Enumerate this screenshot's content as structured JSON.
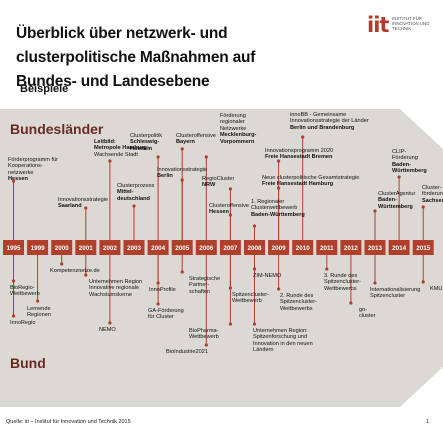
{
  "header": {
    "title_line1": "Überblick über netzwerk- und clusterpolitische Maßnahmen auf",
    "title_line2": "Bundes- und Landesebene",
    "subtitle": "Beispiele"
  },
  "logo": {
    "mark": "iit",
    "text": "INSTITUT FÜR\nINNOVATION UND\nTECHNIK"
  },
  "regions": {
    "top": "Bundesländer",
    "bottom": "Bund"
  },
  "years": [
    "1995",
    "1999",
    "2000",
    "2001",
    "2002",
    "2003",
    "2004",
    "2005",
    "2006",
    "2007",
    "2008",
    "2009",
    "2010",
    "2011",
    "2012",
    "2013",
    "2014",
    "2015"
  ],
  "laender_events": [
    {
      "lines": [
        "Förderprogramm für",
        "Kooperations-",
        "netzwerke"
      ],
      "bold": [
        "Hessen"
      ]
    },
    {
      "lines": [
        "Innovationsstrategie"
      ],
      "bold": [
        "Saarland"
      ]
    },
    {
      "lines": [],
      "bold": [
        "Leitbild:",
        "Metropole Hamburg -"
      ],
      "after": [
        "Wachsende Stadt"
      ]
    },
    {
      "lines": [
        "Clusterprozess"
      ],
      "bold": [
        "Mittel-",
        "deutschland"
      ]
    },
    {
      "lines": [
        "Clusterpolitik"
      ],
      "bold": [
        "Schleswig-",
        "Holstein"
      ]
    },
    {
      "lines": [
        "Clusteroffensive"
      ],
      "bold": [
        "Bayern"
      ]
    },
    {
      "lines": [
        "Innovationsstrategie"
      ],
      "bold": [
        "Berlin"
      ]
    },
    {
      "lines": [
        "Förderung",
        "regionaler",
        "Netzwerke"
      ],
      "bold": [
        "Mecklenburg-",
        "Vorpommern"
      ]
    },
    {
      "lines": [
        "RegioCluster"
      ],
      "bold": [
        "NRW"
      ]
    },
    {
      "lines": [
        "Clusteroffensive"
      ],
      "bold": [
        "Hessen"
      ]
    },
    {
      "lines": [
        "1. Regionaler",
        "Clusterwettbewerb"
      ],
      "bold": [
        "Baden-Württemberg"
      ]
    },
    {
      "lines": [
        "Innovationsprogramm 2020"
      ],
      "bold": [
        "Freie Hansestadt Bremen"
      ]
    },
    {
      "lines": [
        "innoBB - Gemeinsame",
        "Innovationsstrategie der Länder"
      ],
      "bold": [
        "Berlin und Brandenburg"
      ]
    },
    {
      "lines": [
        "Neue clusterpolitische Gesamtstrategie"
      ],
      "bold": [
        "Freie Hansestadt Hamburg"
      ]
    },
    {
      "lines": [
        "ClusterAgentur"
      ],
      "bold": [
        "Baden-",
        "Württemberg"
      ]
    },
    {
      "lines": [
        "CLIP-",
        "Förderung"
      ],
      "bold": [
        "Baden-",
        "Württemberg"
      ]
    },
    {
      "lines": [
        "Cluster-",
        "förderung"
      ],
      "bold": [
        "Sachsen"
      ]
    }
  ],
  "bund_events": [
    {
      "lines": [
        "BioRegio-",
        "Wettbewerb"
      ]
    },
    {
      "lines": [
        "InnoRegio"
      ]
    },
    {
      "lines": [
        "Lernende",
        "Regionen"
      ]
    },
    {
      "lines": [
        "Kompetenznetze.de"
      ]
    },
    {
      "lines": [
        "Unternehmen Region",
        "Innovative regionale",
        "Wachstumskerne"
      ]
    },
    {
      "lines": [
        "NEMO"
      ]
    },
    {
      "lines": [
        "InnoProfile"
      ]
    },
    {
      "lines": [
        "GA-Förderung",
        "für Cluster"
      ]
    },
    {
      "lines": [
        "Strategische",
        "Partner-",
        "schaften"
      ]
    },
    {
      "lines": [
        "BioIndustrie2021"
      ]
    },
    {
      "lines": [
        "BioPharma-",
        "Wettbewerb"
      ]
    },
    {
      "lines": [
        "Spitzencluster-",
        "Wettbewerb"
      ]
    },
    {
      "lines": [
        "ZIM-NEMO"
      ]
    },
    {
      "lines": [
        "2. Runde des",
        "Spitzencluster-",
        "Wettbewerbs"
      ]
    },
    {
      "lines": [
        "Unternehmen Region:",
        "Spitzenforschung und",
        "Innovation in den neuen",
        "Ländern"
      ]
    },
    {
      "lines": [
        "3. Runde des",
        "Spitzencluster-",
        "Wettbewerbs"
      ]
    },
    {
      "lines": [
        "go-",
        "cluster"
      ]
    },
    {
      "lines": [
        "Internationalisierung",
        "Spitzencluster"
      ]
    },
    {
      "lines": [
        "KMU"
      ]
    }
  ],
  "colors": {
    "band": "#dcd9d4",
    "year_box": "#b0402c",
    "connector": "#b0402c",
    "region_text": "#6b2a20"
  },
  "footer": {
    "source": "Quelle: iit – Institut für Innovation und Technik 2015",
    "page": "1"
  }
}
